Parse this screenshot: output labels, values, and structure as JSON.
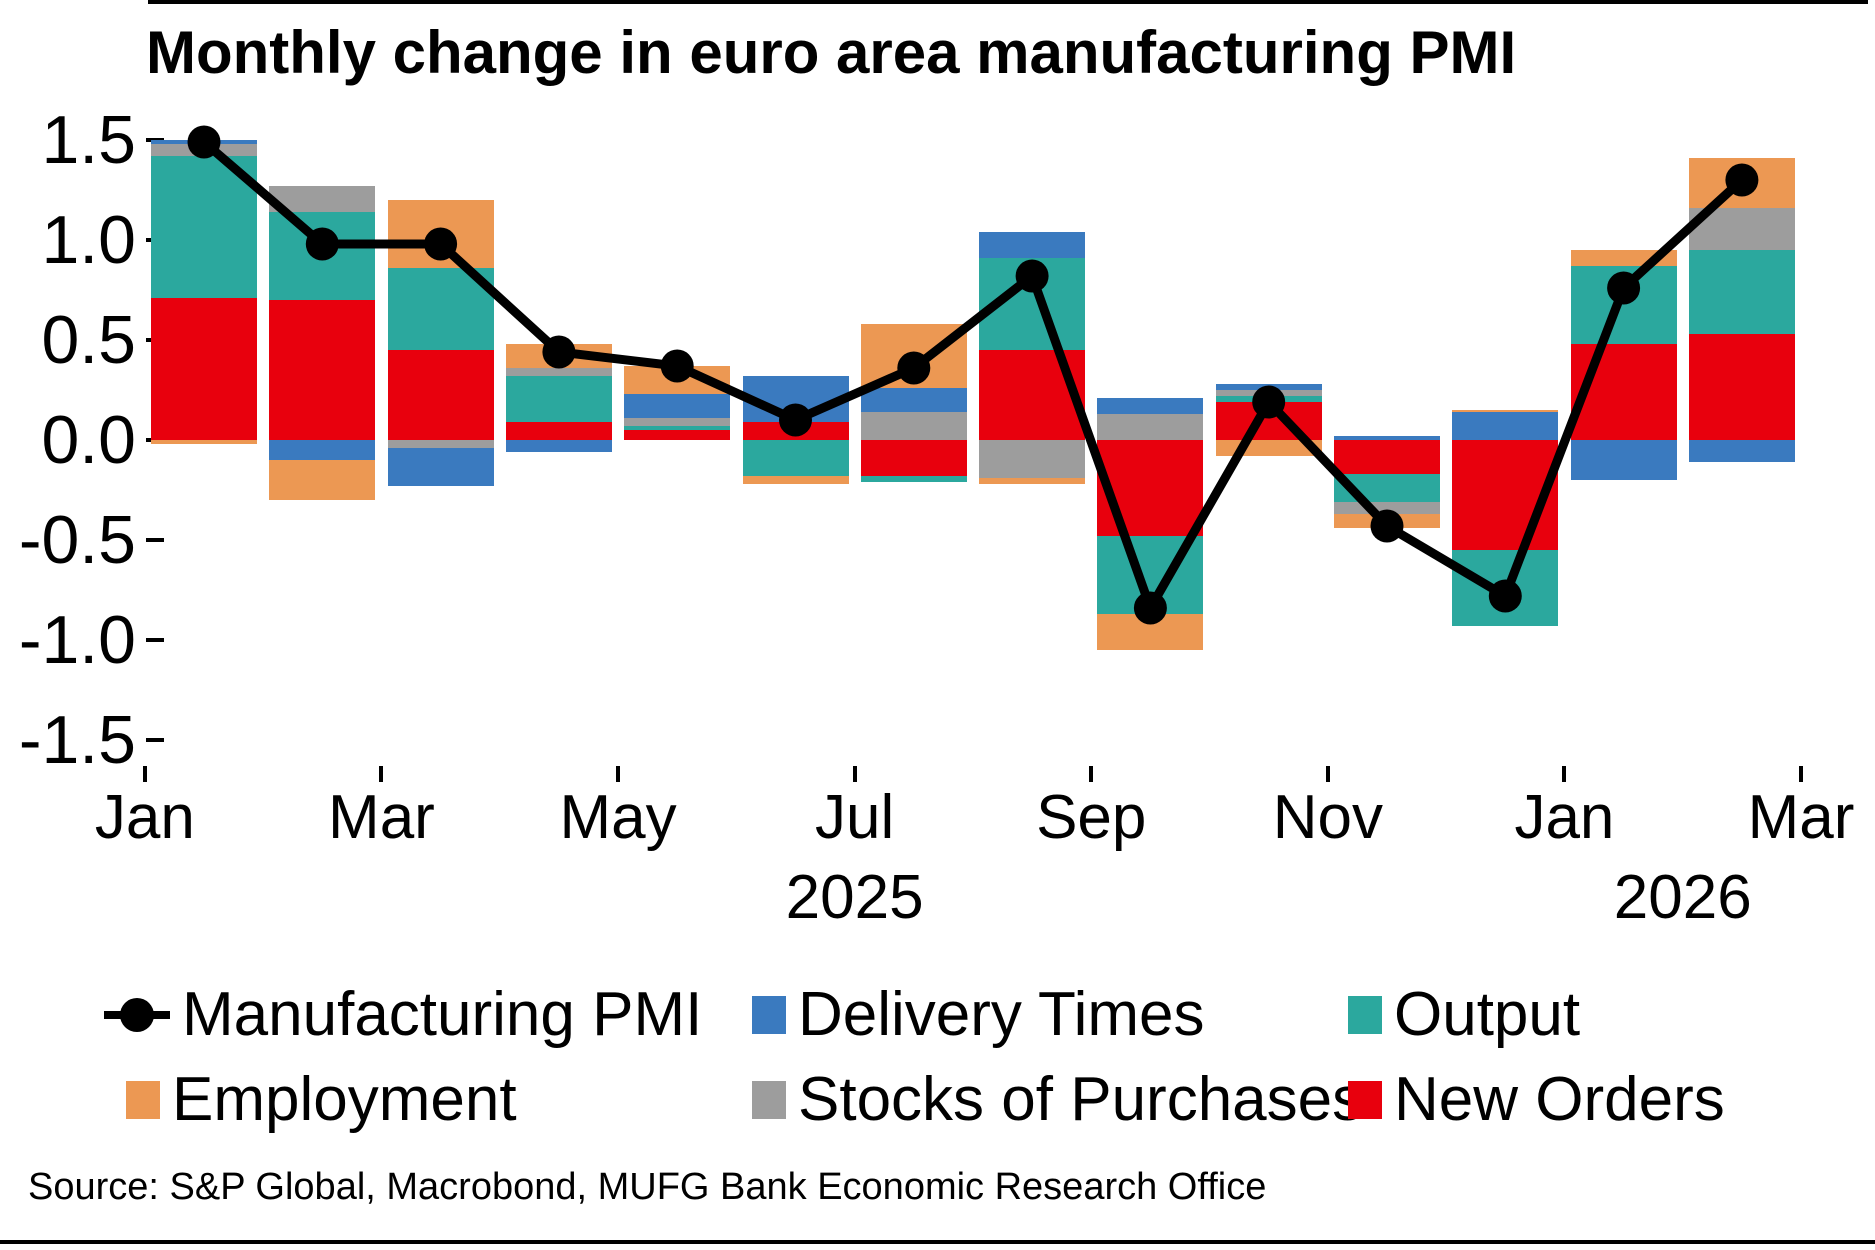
{
  "title": "Monthly change in euro area manufacturing PMI",
  "source": "Source: S&P Global, Macrobond, MUFG Bank Economic Research Office",
  "colors": {
    "pmi": "#000000",
    "delivery_times": "#3a7abf",
    "output": "#2ba89e",
    "employment": "#ec9853",
    "stocks_of_purchases": "#9d9d9d",
    "new_orders": "#e8000d"
  },
  "y_axis": {
    "tick_labels": [
      "1.5",
      "1.0",
      "0.5",
      "0.0",
      "-0.5",
      "-1.0",
      "-1.5"
    ],
    "tick_values": [
      1.5,
      1.0,
      0.5,
      0.0,
      -0.5,
      -1.0,
      -1.5
    ]
  },
  "x_axis": {
    "tick_labels": [
      "Jan",
      "Mar",
      "May",
      "Jul",
      "Sep",
      "Nov",
      "Jan",
      "Mar"
    ],
    "tick_month_index": [
      0,
      2,
      4,
      6,
      8,
      10,
      12,
      14
    ],
    "year_labels": [
      {
        "text": "2025",
        "pos": 6
      },
      {
        "text": "2026",
        "pos": 13
      }
    ]
  },
  "legend": {
    "items": [
      {
        "label": "Manufacturing PMI",
        "series": "pmi"
      },
      {
        "label": "Delivery Times",
        "series": "delivery_times"
      },
      {
        "label": "Output",
        "series": "output"
      },
      {
        "label": "Employment",
        "series": "employment"
      },
      {
        "label": "Stocks of Purchases",
        "series": "stocks_of_purchases"
      },
      {
        "label": "New Orders",
        "series": "new_orders"
      }
    ]
  },
  "chart_data": {
    "type": "bar",
    "subtype": "stacked-bars-with-line",
    "title": "Monthly change in euro area manufacturing PMI",
    "xlabel": "",
    "ylabel": "",
    "ylim": [
      -1.5,
      1.5
    ],
    "grid": false,
    "legend_position": "bottom",
    "categories": [
      "Jan 2025",
      "Feb 2025",
      "Mar 2025",
      "Apr 2025",
      "May 2025",
      "Jun 2025",
      "Jul 2025",
      "Aug 2025",
      "Sep 2025",
      "Oct 2025",
      "Nov 2025",
      "Dec 2025",
      "Jan 2026",
      "Feb 2026"
    ],
    "stack_order": [
      "new_orders",
      "output",
      "stocks_of_purchases",
      "delivery_times",
      "employment"
    ],
    "series": [
      {
        "name": "New Orders",
        "key": "new_orders",
        "values": [
          0.71,
          0.7,
          0.45,
          0.09,
          0.05,
          0.09,
          -0.18,
          0.45,
          -0.48,
          0.19,
          -0.17,
          -0.55,
          0.48,
          0.53
        ]
      },
      {
        "name": "Output",
        "key": "output",
        "values": [
          0.71,
          0.44,
          0.41,
          0.23,
          0.02,
          -0.18,
          -0.03,
          0.46,
          -0.39,
          0.03,
          -0.14,
          -0.38,
          0.39,
          0.42
        ]
      },
      {
        "name": "Stocks of Purchases",
        "key": "stocks_of_purchases",
        "values": [
          0.06,
          0.13,
          -0.04,
          0.04,
          0.04,
          0,
          0.14,
          -0.19,
          0.13,
          0.03,
          -0.06,
          0,
          0,
          0.21
        ]
      },
      {
        "name": "Delivery Times",
        "key": "delivery_times",
        "values": [
          0.02,
          -0.1,
          -0.19,
          -0.06,
          0.12,
          0.23,
          0.12,
          0.13,
          0.08,
          0.03,
          0.02,
          0.14,
          -0.2,
          -0.11
        ]
      },
      {
        "name": "Employment",
        "key": "employment",
        "values": [
          -0.02,
          -0.2,
          0.34,
          0.12,
          0.14,
          -0.04,
          0.32,
          -0.03,
          -0.18,
          -0.08,
          -0.07,
          0.01,
          0.08,
          0.25
        ]
      }
    ],
    "line_series": {
      "name": "Manufacturing PMI",
      "key": "pmi",
      "values": [
        1.49,
        0.98,
        0.98,
        0.44,
        0.37,
        0.1,
        0.36,
        0.82,
        -0.84,
        0.19,
        -0.43,
        -0.78,
        0.76,
        1.3
      ]
    }
  }
}
